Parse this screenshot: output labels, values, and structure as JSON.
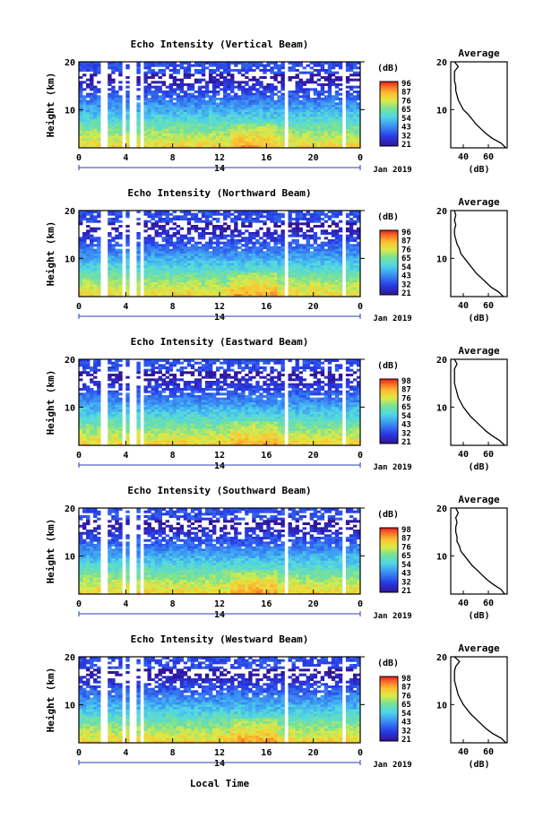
{
  "figure": {
    "bottom_label": "Local Time",
    "date_label": "Jan 2019",
    "day_label": "14",
    "height_axis_label": "Height (km)",
    "colorbar_unit": "(dB)",
    "average_title": "Average",
    "average_xlabel": "(dB)"
  },
  "chart_data": [
    {
      "type": "heatmap",
      "title": "Echo Intensity (Vertical Beam)",
      "xlabel": "Local Time",
      "ylabel": "Height (km)",
      "x_ticks": [
        "0",
        "4",
        "8",
        "12",
        "16",
        "20",
        "0"
      ],
      "xlim": [
        0,
        24
      ],
      "y_ticks": [
        "20",
        "10"
      ],
      "ylim": [
        2,
        20
      ],
      "colorbar": {
        "label": "(dB)",
        "ticks": [
          "96",
          "87",
          "76",
          "65",
          "54",
          "43",
          "32",
          "21"
        ],
        "range": [
          21,
          96
        ]
      },
      "data_gaps_hours": [
        [
          2.0,
          2.4
        ],
        [
          3.6,
          4.0
        ],
        [
          4.4,
          4.8
        ],
        [
          5.3,
          5.6
        ],
        [
          17.6,
          17.9
        ],
        [
          22.6,
          22.9
        ]
      ],
      "average_profile": {
        "title": "Average",
        "xlabel": "(dB)",
        "x_ticks": [
          "40",
          "60"
        ],
        "y_ticks": [
          "20",
          "10"
        ],
        "xlim": [
          30,
          75
        ],
        "ylim": [
          2,
          20
        ],
        "height_km": [
          2,
          3,
          4,
          5,
          6,
          7,
          8,
          9,
          10,
          11,
          12,
          13,
          14,
          15,
          16,
          17,
          18,
          19,
          20
        ],
        "intensity_db": [
          74,
          70,
          63,
          58,
          54,
          50,
          47,
          44,
          40,
          38,
          36,
          35,
          34,
          34,
          33,
          33,
          33,
          36,
          33
        ]
      }
    },
    {
      "type": "heatmap",
      "title": "Echo Intensity (Northward Beam)",
      "xlabel": "Local Time",
      "ylabel": "Height (km)",
      "x_ticks": [
        "0",
        "4",
        "8",
        "12",
        "16",
        "20",
        "0"
      ],
      "xlim": [
        0,
        24
      ],
      "y_ticks": [
        "20",
        "10"
      ],
      "ylim": [
        2,
        20
      ],
      "colorbar": {
        "label": "(dB)",
        "ticks": [
          "96",
          "87",
          "76",
          "65",
          "54",
          "43",
          "32",
          "21"
        ],
        "range": [
          21,
          96
        ]
      },
      "data_gaps_hours": [
        [
          2.0,
          2.4
        ],
        [
          3.6,
          4.0
        ],
        [
          4.4,
          4.8
        ],
        [
          5.3,
          5.6
        ],
        [
          17.6,
          17.9
        ],
        [
          22.6,
          22.9
        ]
      ],
      "average_profile": {
        "title": "Average",
        "xlabel": "(dB)",
        "x_ticks": [
          "40",
          "60"
        ],
        "y_ticks": [
          "20",
          "10"
        ],
        "xlim": [
          30,
          75
        ],
        "ylim": [
          2,
          20
        ],
        "height_km": [
          2,
          3,
          4,
          5,
          6,
          7,
          8,
          9,
          10,
          11,
          12,
          13,
          14,
          15,
          16,
          17,
          18,
          19,
          20
        ],
        "intensity_db": [
          72,
          68,
          62,
          58,
          54,
          50,
          47,
          44,
          41,
          38,
          37,
          35,
          34,
          33,
          33,
          34,
          33,
          34,
          33
        ]
      }
    },
    {
      "type": "heatmap",
      "title": "Echo Intensity (Eastward Beam)",
      "xlabel": "Local Time",
      "ylabel": "Height (km)",
      "x_ticks": [
        "0",
        "4",
        "8",
        "12",
        "16",
        "20",
        "0"
      ],
      "xlim": [
        0,
        24
      ],
      "y_ticks": [
        "20",
        "10"
      ],
      "ylim": [
        2,
        20
      ],
      "colorbar": {
        "label": "(dB)",
        "ticks": [
          "98",
          "87",
          "76",
          "65",
          "54",
          "43",
          "32",
          "21"
        ],
        "range": [
          21,
          98
        ]
      },
      "data_gaps_hours": [
        [
          2.0,
          2.4
        ],
        [
          3.6,
          4.0
        ],
        [
          4.4,
          4.8
        ],
        [
          5.3,
          5.6
        ],
        [
          17.6,
          17.9
        ],
        [
          22.6,
          22.9
        ]
      ],
      "average_profile": {
        "title": "Average",
        "xlabel": "(dB)",
        "x_ticks": [
          "40",
          "60"
        ],
        "y_ticks": [
          "20",
          "10"
        ],
        "xlim": [
          30,
          75
        ],
        "ylim": [
          2,
          20
        ],
        "height_km": [
          2,
          3,
          4,
          5,
          6,
          7,
          8,
          9,
          10,
          11,
          12,
          13,
          14,
          15,
          16,
          17,
          18,
          19,
          20
        ],
        "intensity_db": [
          73,
          69,
          63,
          58,
          54,
          50,
          46,
          43,
          40,
          38,
          36,
          35,
          34,
          33,
          33,
          33,
          33,
          35,
          33
        ]
      }
    },
    {
      "type": "heatmap",
      "title": "Echo Intensity (Southward Beam)",
      "xlabel": "Local Time",
      "ylabel": "Height (km)",
      "x_ticks": [
        "0",
        "4",
        "8",
        "12",
        "16",
        "20",
        "0"
      ],
      "xlim": [
        0,
        24
      ],
      "y_ticks": [
        "20",
        "10"
      ],
      "ylim": [
        2,
        20
      ],
      "colorbar": {
        "label": "(dB)",
        "ticks": [
          "98",
          "87",
          "76",
          "65",
          "54",
          "43",
          "32",
          "21"
        ],
        "range": [
          21,
          98
        ]
      },
      "data_gaps_hours": [
        [
          2.0,
          2.4
        ],
        [
          3.6,
          4.0
        ],
        [
          4.4,
          4.8
        ],
        [
          5.3,
          5.6
        ],
        [
          17.6,
          17.9
        ],
        [
          22.6,
          22.9
        ]
      ],
      "average_profile": {
        "title": "Average",
        "xlabel": "(dB)",
        "x_ticks": [
          "40",
          "60"
        ],
        "y_ticks": [
          "20",
          "10"
        ],
        "xlim": [
          30,
          75
        ],
        "ylim": [
          2,
          20
        ],
        "height_km": [
          2,
          3,
          4,
          5,
          6,
          7,
          8,
          9,
          10,
          11,
          12,
          13,
          14,
          15,
          16,
          17,
          18,
          19,
          20
        ],
        "intensity_db": [
          73,
          70,
          64,
          59,
          55,
          51,
          47,
          44,
          41,
          38,
          37,
          35,
          35,
          34,
          34,
          35,
          34,
          36,
          34
        ]
      }
    },
    {
      "type": "heatmap",
      "title": "Echo Intensity (Westward Beam)",
      "xlabel": "Local Time",
      "ylabel": "Height (km)",
      "x_ticks": [
        "0",
        "4",
        "8",
        "12",
        "16",
        "20",
        "0"
      ],
      "xlim": [
        0,
        24
      ],
      "y_ticks": [
        "20",
        "10"
      ],
      "ylim": [
        2,
        20
      ],
      "colorbar": {
        "label": "(dB)",
        "ticks": [
          "98",
          "87",
          "76",
          "65",
          "54",
          "43",
          "32",
          "21"
        ],
        "range": [
          21,
          98
        ]
      },
      "data_gaps_hours": [
        [
          2.0,
          2.4
        ],
        [
          3.6,
          4.0
        ],
        [
          4.4,
          4.8
        ],
        [
          5.3,
          5.6
        ],
        [
          17.6,
          17.9
        ],
        [
          22.6,
          22.9
        ]
      ],
      "average_profile": {
        "title": "Average",
        "xlabel": "(dB)",
        "x_ticks": [
          "40",
          "60"
        ],
        "y_ticks": [
          "20",
          "10"
        ],
        "xlim": [
          30,
          75
        ],
        "ylim": [
          2,
          20
        ],
        "height_km": [
          2,
          3,
          4,
          5,
          6,
          7,
          8,
          9,
          10,
          11,
          12,
          13,
          14,
          15,
          16,
          17,
          18,
          19,
          20
        ],
        "intensity_db": [
          74,
          70,
          63,
          58,
          54,
          50,
          46,
          43,
          40,
          38,
          36,
          35,
          34,
          33,
          33,
          33,
          34,
          37,
          33
        ]
      }
    }
  ]
}
